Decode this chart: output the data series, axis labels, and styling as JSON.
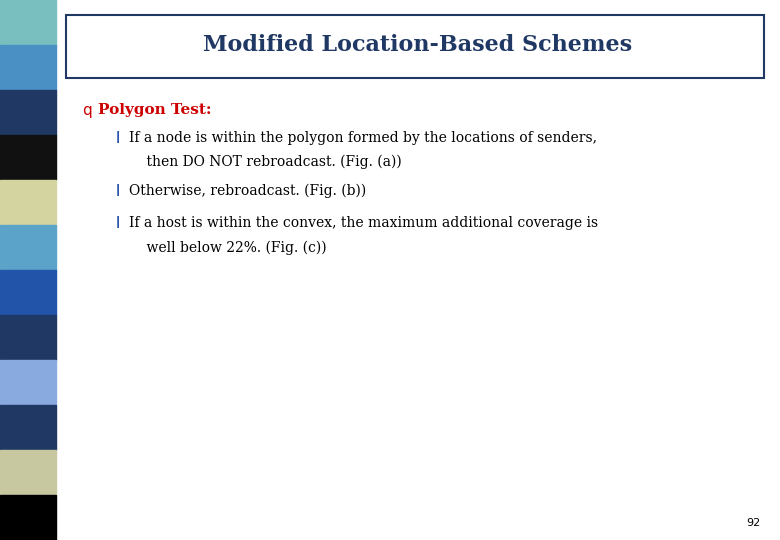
{
  "title": "Modified Location-Based Schemes",
  "title_color": "#1F3864",
  "bg_color": "#FFFFFF",
  "slide_bg": "#CCCCCC",
  "left_strip_colors": [
    "#7ABFBF",
    "#4A90C4",
    "#1F3864",
    "#111111",
    "#D4D4A0",
    "#5BA3C9",
    "#2255AA",
    "#1F3864",
    "#88AADE",
    "#1F3864",
    "#C8C8A0",
    "#000000"
  ],
  "bullet_color": "#CC0000",
  "bullet_head": "Polygon Test:",
  "bullet1": "If a node is within the polygon formed by the locations of senders,",
  "bullet1b": "    then DO NOT rebroadcast. (Fig. (a))",
  "bullet2": "Otherwise, rebroadcast. (Fig. (b))",
  "bullet3": "If a host is within the convex, the maximum additional coverage is",
  "bullet3b": "    well below 22%. (Fig. (c))",
  "bullet_dot_color": "#003399",
  "text_color": "#000000",
  "gray_fill": "#AAAAAA",
  "page_num": "92"
}
